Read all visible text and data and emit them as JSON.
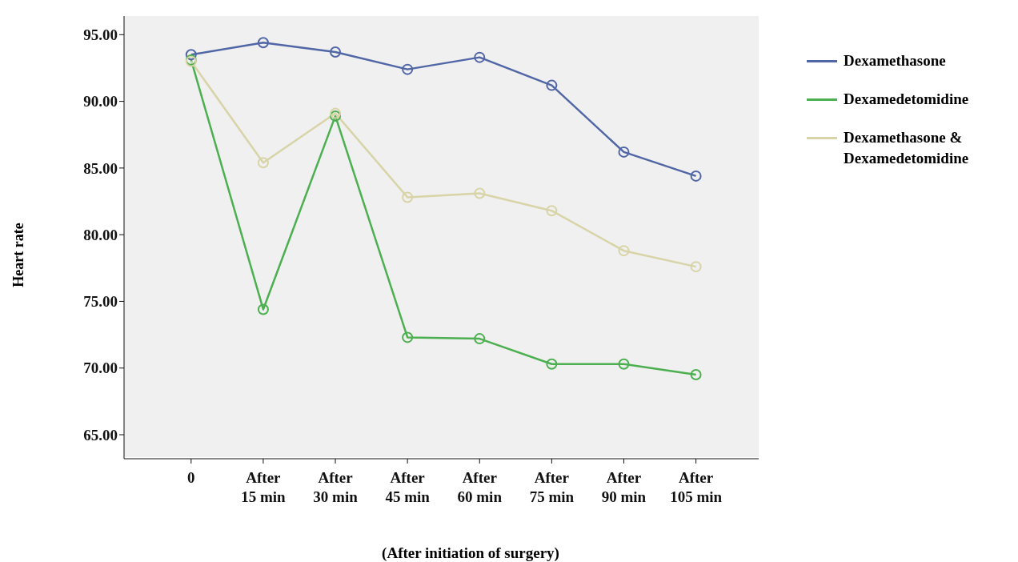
{
  "chart_data": {
    "type": "line",
    "xlabel": "(After initiation of surgery)",
    "ylabel": "Heart rate",
    "categories": [
      "0",
      "After\n15 min",
      "After\n30 min",
      "After\n45 min",
      "After\n60 min",
      "After\n75 min",
      "After\n90 min",
      "After\n105 min"
    ],
    "series": [
      {
        "name": "Dexamethasone",
        "color": "#5166a6",
        "values": [
          93.5,
          94.4,
          93.7,
          92.4,
          93.3,
          91.2,
          86.2,
          84.4
        ]
      },
      {
        "name": "Dexamedetomidine",
        "color": "#4caf50",
        "values": [
          93.1,
          74.4,
          88.9,
          72.3,
          72.2,
          70.3,
          70.3,
          69.5
        ]
      },
      {
        "name": "Dexamethasone & Dexamedetomidine",
        "color": "#d8d4a8",
        "values": [
          93.0,
          85.4,
          89.1,
          82.8,
          83.1,
          81.8,
          78.8,
          77.6
        ]
      }
    ],
    "ylim": [
      63.2,
      96.4
    ],
    "yticks": [
      {
        "value": 65,
        "label": "65.00"
      },
      {
        "value": 70,
        "label": "70.00"
      },
      {
        "value": 75,
        "label": "75.00"
      },
      {
        "value": 80,
        "label": "80.00"
      },
      {
        "value": 85,
        "label": "85.00"
      },
      {
        "value": 90,
        "label": "90.00"
      },
      {
        "value": 95,
        "label": "95.00"
      }
    ],
    "legend": "right",
    "marker": "circle",
    "line_style": "solid",
    "grid": false
  }
}
